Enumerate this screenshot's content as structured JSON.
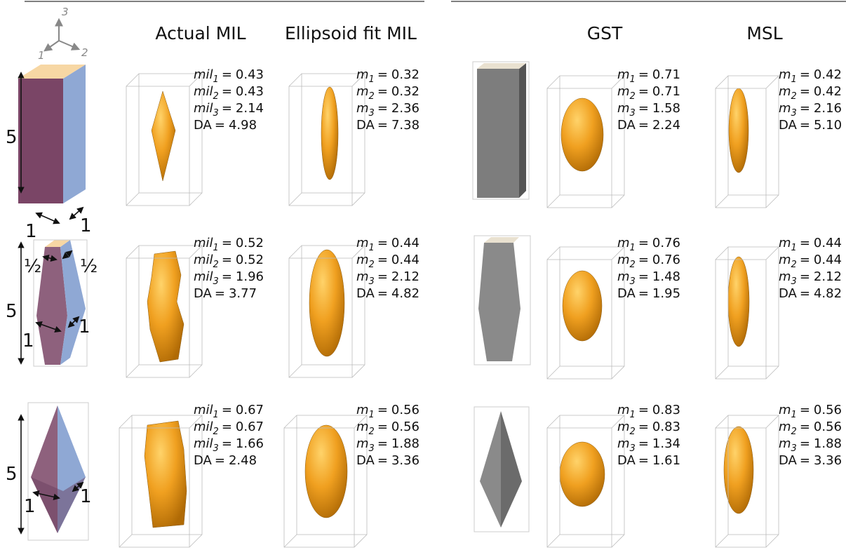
{
  "headers": [
    "Actual MIL",
    "Ellipsoid fit MIL",
    "GST",
    "MSL"
  ],
  "axes": {
    "axis3": "3",
    "axis1": "1",
    "axis2": "2"
  },
  "equals": "=",
  "rows": [
    {
      "dimensions": [
        "5",
        "1",
        "1"
      ],
      "panels": [
        [
          {
            "sym": "mil",
            "sub": "1",
            "val": "0.43"
          },
          {
            "sym": "mil",
            "sub": "2",
            "val": "0.43"
          },
          {
            "sym": "mil",
            "sub": "3",
            "val": "2.14"
          },
          {
            "sym": "DA",
            "val": "4.98"
          }
        ],
        [
          {
            "sym": "m",
            "sub": "1",
            "val": "0.32"
          },
          {
            "sym": "m",
            "sub": "2",
            "val": "0.32"
          },
          {
            "sym": "m",
            "sub": "3",
            "val": "2.36"
          },
          {
            "sym": "DA",
            "val": "7.38"
          }
        ],
        [
          {
            "sym": "m",
            "sub": "1",
            "val": "0.71"
          },
          {
            "sym": "m",
            "sub": "2",
            "val": "0.71"
          },
          {
            "sym": "m",
            "sub": "3",
            "val": "1.58"
          },
          {
            "sym": "DA",
            "val": "2.24"
          }
        ],
        [
          {
            "sym": "m",
            "sub": "1",
            "val": "0.42"
          },
          {
            "sym": "m",
            "sub": "2",
            "val": "0.42"
          },
          {
            "sym": "m",
            "sub": "3",
            "val": "2.16"
          },
          {
            "sym": "DA",
            "val": "5.10"
          }
        ]
      ]
    },
    {
      "dimensions": [
        "½",
        "½",
        "5",
        "1",
        "1"
      ],
      "panels": [
        [
          {
            "sym": "mil",
            "sub": "1",
            "val": "0.52"
          },
          {
            "sym": "mil",
            "sub": "2",
            "val": "0.52"
          },
          {
            "sym": "mil",
            "sub": "3",
            "val": "1.96"
          },
          {
            "sym": "DA",
            "val": "3.77"
          }
        ],
        [
          {
            "sym": "m",
            "sub": "1",
            "val": "0.44"
          },
          {
            "sym": "m",
            "sub": "2",
            "val": "0.44"
          },
          {
            "sym": "m",
            "sub": "3",
            "val": "2.12"
          },
          {
            "sym": "DA",
            "val": "4.82"
          }
        ],
        [
          {
            "sym": "m",
            "sub": "1",
            "val": "0.76"
          },
          {
            "sym": "m",
            "sub": "2",
            "val": "0.76"
          },
          {
            "sym": "m",
            "sub": "3",
            "val": "1.48"
          },
          {
            "sym": "DA",
            "val": "1.95"
          }
        ],
        [
          {
            "sym": "m",
            "sub": "1",
            "val": "0.44"
          },
          {
            "sym": "m",
            "sub": "2",
            "val": "0.44"
          },
          {
            "sym": "m",
            "sub": "3",
            "val": "2.12"
          },
          {
            "sym": "DA",
            "val": "4.82"
          }
        ]
      ]
    },
    {
      "dimensions": [
        "5",
        "1",
        "1"
      ],
      "panels": [
        [
          {
            "sym": "mil",
            "sub": "1",
            "val": "0.67"
          },
          {
            "sym": "mil",
            "sub": "2",
            "val": "0.67"
          },
          {
            "sym": "mil",
            "sub": "3",
            "val": "1.66"
          },
          {
            "sym": "DA",
            "val": "2.48"
          }
        ],
        [
          {
            "sym": "m",
            "sub": "1",
            "val": "0.56"
          },
          {
            "sym": "m",
            "sub": "2",
            "val": "0.56"
          },
          {
            "sym": "m",
            "sub": "3",
            "val": "1.88"
          },
          {
            "sym": "DA",
            "val": "3.36"
          }
        ],
        [
          {
            "sym": "m",
            "sub": "1",
            "val": "0.83"
          },
          {
            "sym": "m",
            "sub": "2",
            "val": "0.83"
          },
          {
            "sym": "m",
            "sub": "3",
            "val": "1.34"
          },
          {
            "sym": "DA",
            "val": "1.61"
          }
        ],
        [
          {
            "sym": "m",
            "sub": "1",
            "val": "0.56"
          },
          {
            "sym": "m",
            "sub": "2",
            "val": "0.56"
          },
          {
            "sym": "m",
            "sub": "3",
            "val": "1.88"
          },
          {
            "sym": "DA",
            "val": "3.36"
          }
        ]
      ]
    }
  ]
}
